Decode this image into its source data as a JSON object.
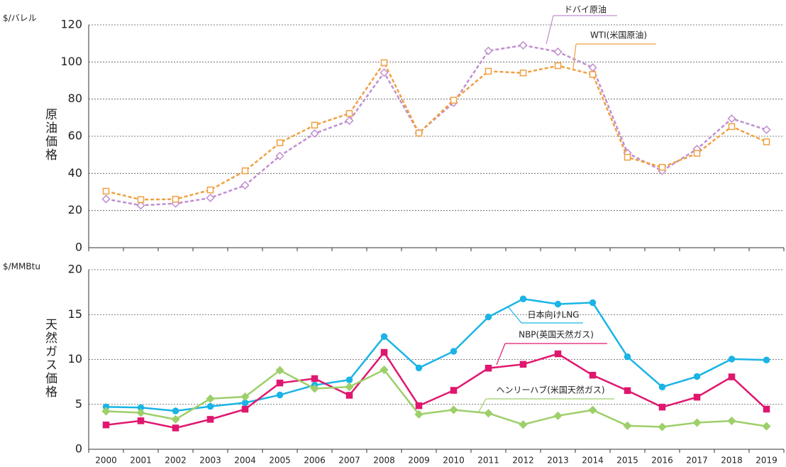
{
  "chart_data": [
    {
      "type": "line",
      "unit_label": "$/バレル",
      "ylabel": "原油価格",
      "ylim": [
        0,
        120
      ],
      "yticks": [
        0,
        20,
        40,
        60,
        80,
        100,
        120
      ],
      "grid": true,
      "line_style": "dashed",
      "marker_fill": "hollow",
      "series": [
        {
          "name": "ドバイ原油",
          "color": "#c08fd0",
          "marker": "diamond",
          "values": [
            26.2,
            22.8,
            23.8,
            26.8,
            33.6,
            49.4,
            61.5,
            68.4,
            94.3,
            61.8,
            78.1,
            106,
            109,
            105.5,
            97,
            51,
            41.4,
            53.1,
            69.5,
            63.5
          ]
        },
        {
          "name": "WTI(米国原油)",
          "color": "#f0a040",
          "marker": "square",
          "values": [
            30.4,
            25.9,
            26.1,
            31.1,
            41.4,
            56.5,
            66,
            72.3,
            99.6,
            61.7,
            79.4,
            95,
            94.1,
            98,
            93.3,
            48.7,
            43.3,
            50.8,
            65.2,
            57
          ]
        }
      ]
    },
    {
      "type": "line",
      "unit_label": "$/MMBtu",
      "ylabel": "天然ガス価格",
      "ylim": [
        0,
        20
      ],
      "yticks": [
        0,
        5,
        10,
        15,
        20
      ],
      "grid": true,
      "line_style": "solid",
      "marker_fill": "filled",
      "categories": [
        "2000",
        "2001",
        "2002",
        "2003",
        "2004",
        "2005",
        "2006",
        "2007",
        "2008",
        "2009",
        "2010",
        "2011",
        "2012",
        "2013",
        "2014",
        "2015",
        "2016",
        "2017",
        "2018",
        "2019"
      ],
      "series": [
        {
          "name": "日本向けLNG",
          "color": "#1ab4e6",
          "marker": "circle",
          "values": [
            4.72,
            4.64,
            4.27,
            4.77,
            5.18,
            6.05,
            7.14,
            7.73,
            12.55,
            9.06,
            10.91,
            14.73,
            16.75,
            16.17,
            16.33,
            10.31,
            6.94,
            8.1,
            10.05,
            9.94
          ]
        },
        {
          "name": "NBP(英国天然ガス)",
          "color": "#e0176f",
          "marker": "square",
          "values": [
            2.71,
            3.17,
            2.37,
            3.33,
            4.46,
            7.38,
            7.87,
            6.01,
            10.79,
            4.85,
            6.56,
            9.03,
            9.46,
            10.63,
            8.25,
            6.53,
            4.69,
            5.8,
            8.06,
            4.47
          ]
        },
        {
          "name": "ヘンリーハブ(米国天然ガス)",
          "color": "#9dcf6a",
          "marker": "diamond",
          "values": [
            4.23,
            4.07,
            3.33,
            5.63,
            5.85,
            8.79,
            6.76,
            6.95,
            8.85,
            3.89,
            4.39,
            4.01,
            2.75,
            3.73,
            4.37,
            2.62,
            2.49,
            2.96,
            3.16,
            2.56
          ]
        }
      ]
    }
  ]
}
